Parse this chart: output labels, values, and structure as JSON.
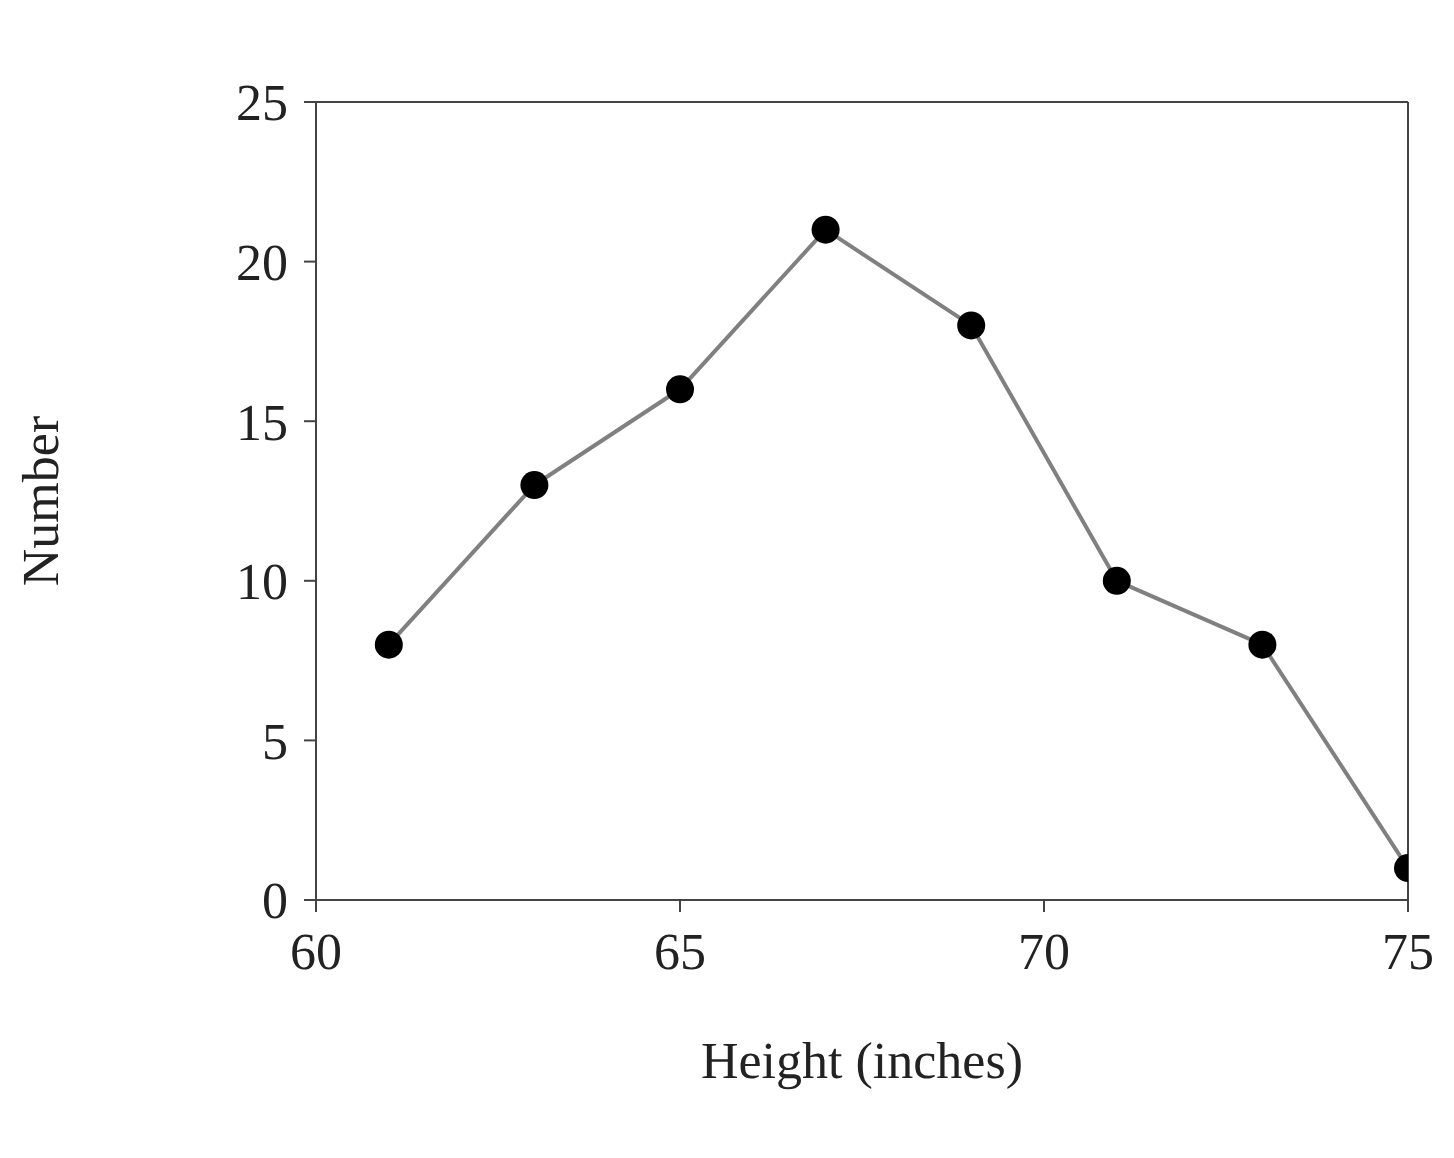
{
  "chart_data": {
    "type": "line",
    "xlabel": "Height (inches)",
    "ylabel": "Number",
    "x": [
      61,
      63,
      65,
      67,
      69,
      71,
      73,
      75
    ],
    "series": [
      {
        "color": "#808080",
        "values": [
          8,
          13,
          16,
          21,
          18,
          10,
          8,
          1
        ]
      }
    ],
    "xlim": [
      60,
      75
    ],
    "xticks": [
      60,
      65,
      70,
      75
    ],
    "ylim": [
      0,
      25
    ],
    "yticks": [
      0,
      5,
      10,
      15,
      20,
      25
    ],
    "marker": "circle",
    "line_style": "solid",
    "grid": false,
    "legend": false
  }
}
